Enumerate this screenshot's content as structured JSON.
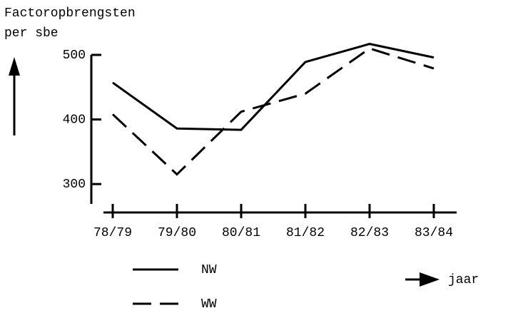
{
  "chart_data": {
    "type": "line",
    "ylabel": [
      "Factoropbrengsten",
      "per sbe"
    ],
    "xlabel": "jaar",
    "categories": [
      "78/79",
      "79/80",
      "80/81",
      "81/82",
      "82/83",
      "83/84"
    ],
    "series": [
      {
        "name": "NW",
        "color": "#000000",
        "dash": "solid",
        "values": [
          457,
          386,
          384,
          489,
          517,
          496
        ]
      },
      {
        "name": "WW",
        "color": "#000000",
        "dash": "dashed",
        "values": [
          408,
          315,
          412,
          440,
          510,
          479
        ]
      }
    ],
    "ylim": [
      256,
      500
    ],
    "yticks": [
      300,
      400,
      500
    ],
    "grid": false
  }
}
